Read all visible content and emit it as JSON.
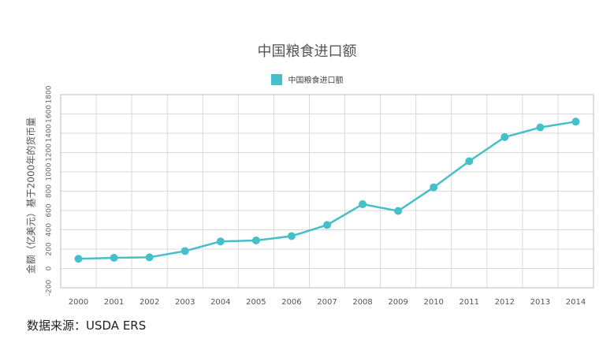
{
  "colors": {
    "series": "#45BFC9",
    "grid": "#d9d9d9",
    "axis": "#bdbdbd"
  },
  "chart_data": {
    "type": "line",
    "title": "中国粮食进口额",
    "xlabel": "",
    "ylabel": "金额（亿美元）基于2000年的货币量",
    "categories": [
      "2000",
      "2001",
      "2002",
      "2003",
      "2004",
      "2005",
      "2006",
      "2007",
      "2008",
      "2009",
      "2010",
      "2011",
      "2012",
      "2013",
      "2014"
    ],
    "series": [
      {
        "name": "中国粮食进口额",
        "values": [
          100,
          110,
          115,
          180,
          280,
          290,
          335,
          450,
          665,
          595,
          840,
          1110,
          1360,
          1460,
          1520
        ]
      }
    ],
    "ylim": [
      -200,
      1800
    ],
    "yticks": [
      "-200",
      "0",
      "200",
      "400",
      "600",
      "800",
      "1000",
      "1200",
      "1400",
      "1600",
      "1800"
    ],
    "grid": true,
    "legend": "top-center"
  },
  "footer": {
    "source": "数据来源：USDA ERS"
  }
}
